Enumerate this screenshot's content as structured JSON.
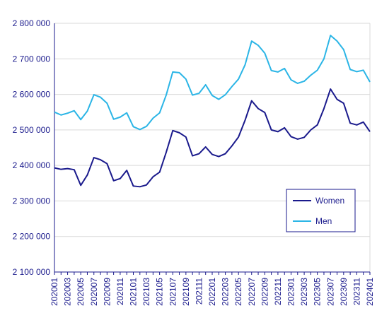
{
  "chart_data": {
    "type": "line",
    "ylim": [
      2100000,
      2800000
    ],
    "yticks": [
      "2 100 000",
      "2 200 000",
      "2 300 000",
      "2 400 000",
      "2 500 000",
      "2 600 000",
      "2 700 000",
      "2 800 000"
    ],
    "ytick_values": [
      2100000,
      2200000,
      2300000,
      2400000,
      2500000,
      2600000,
      2700000,
      2800000
    ],
    "grid": true,
    "legend_position": "bottom-right",
    "x": [
      "202001",
      "202002",
      "202003",
      "202004",
      "202005",
      "202006",
      "202007",
      "202008",
      "202009",
      "202010",
      "202011",
      "202012",
      "202101",
      "202102",
      "202103",
      "202104",
      "202105",
      "202106",
      "202107",
      "202108",
      "202109",
      "202110",
      "202111",
      "202112",
      "202201",
      "202202",
      "202203",
      "202204",
      "202205",
      "202206",
      "202207",
      "202208",
      "202209",
      "202210",
      "202211",
      "202212",
      "202301",
      "202302",
      "202303",
      "202304",
      "202305",
      "202306",
      "202307",
      "202308",
      "202309",
      "202310",
      "202311",
      "202312",
      "202401"
    ],
    "x_tick_labels": [
      "202001",
      "202003",
      "202005",
      "202007",
      "202009",
      "202011",
      "202101",
      "202103",
      "202105",
      "202107",
      "202109",
      "202111",
      "202201",
      "202203",
      "202205",
      "202207",
      "202209",
      "202211",
      "202301",
      "202303",
      "202305",
      "202307",
      "202309",
      "202311",
      "202401"
    ],
    "series": [
      {
        "name": "Women",
        "color": "#1a1a8c",
        "values": [
          2393000,
          2389000,
          2391000,
          2388000,
          2344000,
          2373000,
          2422000,
          2416000,
          2405000,
          2357000,
          2363000,
          2386000,
          2342000,
          2340000,
          2345000,
          2368000,
          2381000,
          2437000,
          2498000,
          2492000,
          2480000,
          2427000,
          2433000,
          2452000,
          2431000,
          2425000,
          2433000,
          2455000,
          2480000,
          2527000,
          2582000,
          2560000,
          2549000,
          2500000,
          2495000,
          2506000,
          2481000,
          2474000,
          2479000,
          2500000,
          2514000,
          2560000,
          2615000,
          2586000,
          2575000,
          2519000,
          2514000,
          2522000,
          2495000
        ]
      },
      {
        "name": "Men",
        "color": "#2bb5e6",
        "values": [
          2550000,
          2542000,
          2547000,
          2554000,
          2529000,
          2553000,
          2599000,
          2592000,
          2575000,
          2530000,
          2536000,
          2548000,
          2509000,
          2501000,
          2510000,
          2533000,
          2548000,
          2598000,
          2663000,
          2661000,
          2643000,
          2598000,
          2603000,
          2627000,
          2597000,
          2586000,
          2599000,
          2622000,
          2643000,
          2683000,
          2750000,
          2738000,
          2716000,
          2667000,
          2663000,
          2673000,
          2641000,
          2631000,
          2637000,
          2654000,
          2668000,
          2700000,
          2766000,
          2750000,
          2726000,
          2670000,
          2664000,
          2668000,
          2635000
        ]
      }
    ]
  }
}
